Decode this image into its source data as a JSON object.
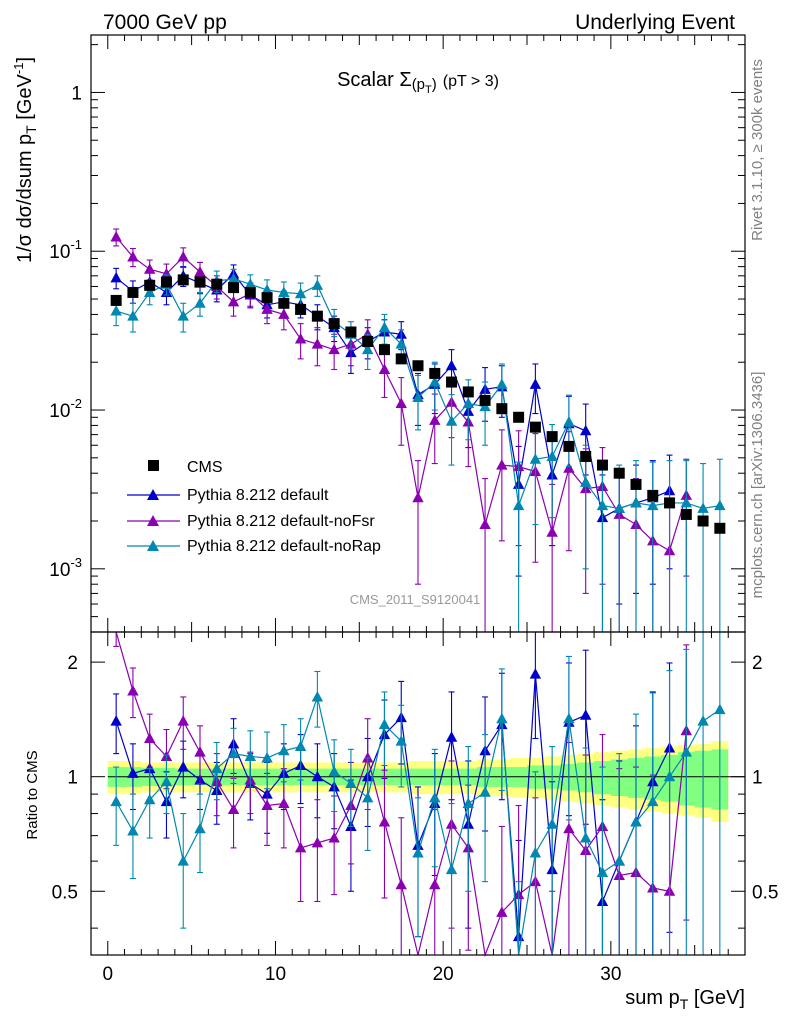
{
  "header": {
    "left": "7000 GeV pp",
    "right": "Underlying Event"
  },
  "side_labels": {
    "rivet": "Rivet 3.1.10, ≥ 300k events",
    "mcplots": "mcplots.cern.ch [arXiv:1306.3436]"
  },
  "chart_data": {
    "type": "scatter",
    "title": "Scalar Σ(pT) (pT > 3)",
    "title_parts": {
      "pre": "Scalar ",
      "sigma": "Σ",
      "arg_open": "(p",
      "arg_sub": "T",
      "arg_close": ")",
      "cut": "(pT >  3)"
    },
    "analysis_label": "CMS_2011_S9120041",
    "xlabel": "sum pT [GeV]",
    "xlabel_parts": {
      "main": "sum p",
      "sub": "T",
      "unit": " [GeV]"
    },
    "ylabel": "1/σ dσ/dsum pT [GeV-1]",
    "ylabel_parts": {
      "a": "1/σ dσ/dsum p",
      "sub": "T",
      "b": " [GeV",
      "sup": "-1",
      "c": "]"
    },
    "ratio_ylabel": "Ratio to CMS",
    "xlim": [
      -1,
      38
    ],
    "ylim": [
      0.0004,
      2.3
    ],
    "yscale": "log",
    "ratio_ylim": [
      0.34,
      2.4
    ],
    "ratio_yscale": "log",
    "x_ticks": [
      0,
      10,
      20,
      30
    ],
    "y_ticks": [
      {
        "v": 0.001,
        "base": "10",
        "exp": "-3"
      },
      {
        "v": 0.01,
        "base": "10",
        "exp": "-2"
      },
      {
        "v": 0.1,
        "base": "10",
        "exp": "-1"
      },
      {
        "v": 1,
        "base": "1",
        "exp": ""
      }
    ],
    "ratio_ticks": [
      {
        "v": 0.5,
        "label": "0.5"
      },
      {
        "v": 1,
        "label": "1"
      },
      {
        "v": 2,
        "label": "2"
      }
    ],
    "legend_position": "lower-left",
    "x": [
      0.5,
      1.5,
      2.5,
      3.5,
      4.5,
      5.5,
      6.5,
      7.5,
      8.5,
      9.5,
      10.5,
      11.5,
      12.5,
      13.5,
      14.5,
      15.5,
      16.5,
      17.5,
      18.5,
      19.5,
      20.5,
      21.5,
      22.5,
      23.5,
      24.5,
      25.5,
      26.5,
      27.5,
      28.5,
      29.5,
      30.5,
      31.5,
      32.5,
      33.5,
      34.5,
      35.5,
      36.5
    ],
    "reference": {
      "name": "CMS",
      "color": "#000000",
      "marker": "square",
      "values": [
        0.049,
        0.055,
        0.061,
        0.064,
        0.066,
        0.064,
        0.062,
        0.059,
        0.055,
        0.051,
        0.047,
        0.043,
        0.039,
        0.035,
        0.031,
        0.027,
        0.024,
        0.021,
        0.019,
        0.017,
        0.015,
        0.013,
        0.0115,
        0.0102,
        0.009,
        0.0078,
        0.0068,
        0.0059,
        0.0051,
        0.0045,
        0.004,
        0.0034,
        0.0029,
        0.0026,
        0.0022,
        0.002,
        0.0018
      ],
      "band_inner": [
        0.06,
        0.06,
        0.055,
        0.055,
        0.05,
        0.05,
        0.05,
        0.05,
        0.05,
        0.05,
        0.05,
        0.05,
        0.05,
        0.05,
        0.05,
        0.05,
        0.05,
        0.05,
        0.05,
        0.05,
        0.05,
        0.05,
        0.06,
        0.06,
        0.06,
        0.07,
        0.07,
        0.08,
        0.09,
        0.1,
        0.11,
        0.12,
        0.13,
        0.14,
        0.16,
        0.17,
        0.18
      ],
      "band_outer": [
        0.1,
        0.1,
        0.09,
        0.09,
        0.09,
        0.09,
        0.09,
        0.09,
        0.09,
        0.09,
        0.09,
        0.09,
        0.09,
        0.09,
        0.09,
        0.09,
        0.09,
        0.09,
        0.1,
        0.1,
        0.1,
        0.1,
        0.11,
        0.11,
        0.12,
        0.12,
        0.13,
        0.14,
        0.15,
        0.16,
        0.17,
        0.18,
        0.19,
        0.2,
        0.21,
        0.22,
        0.24
      ],
      "band_inner_color": "#80ff80",
      "band_outer_color": "#ffff80"
    },
    "series": [
      {
        "name": "Pythia 8.212 default",
        "color": "#0000cc",
        "marker": "triangle",
        "values": [
          0.068,
          0.056,
          0.064,
          0.055,
          0.07,
          0.063,
          0.057,
          0.072,
          0.053,
          0.046,
          0.048,
          0.046,
          0.039,
          0.033,
          0.023,
          0.027,
          0.031,
          0.03,
          0.0125,
          0.0145,
          0.019,
          0.0098,
          0.0135,
          0.014,
          0.0034,
          0.0145,
          0.0039,
          0.0082,
          0.0074,
          0.0021,
          0.0024,
          0.0026,
          0.0028,
          0.0031
        ],
        "errors": [
          0.01,
          0.009,
          0.009,
          0.009,
          0.01,
          0.009,
          0.009,
          0.01,
          0.009,
          0.008,
          0.008,
          0.008,
          0.007,
          0.006,
          0.006,
          0.006,
          0.006,
          0.006,
          0.0045,
          0.005,
          0.005,
          0.004,
          0.005,
          0.005,
          0.0025,
          0.005,
          0.0025,
          0.004,
          0.0035,
          0.0018,
          0.0018,
          0.0019,
          0.002,
          0.0021
        ],
        "ratio": [
          1.4,
          1.02,
          1.05,
          0.86,
          1.06,
          0.98,
          0.92,
          1.22,
          0.96,
          0.9,
          1.02,
          1.07,
          1.0,
          0.94,
          0.74,
          1.0,
          1.29,
          1.43,
          0.66,
          0.85,
          1.27,
          0.75,
          1.17,
          1.37,
          0.38,
          1.86,
          0.57,
          1.39,
          1.45,
          0.47,
          0.6,
          0.76,
          0.97,
          1.19
        ],
        "ratio_errors": [
          0.25,
          0.2,
          0.18,
          0.17,
          0.18,
          0.16,
          0.17,
          0.2,
          0.19,
          0.19,
          0.2,
          0.22,
          0.22,
          0.21,
          0.24,
          0.26,
          0.3,
          0.35,
          0.28,
          0.3,
          0.4,
          0.35,
          0.45,
          0.5,
          0.3,
          0.6,
          0.4,
          0.6,
          0.7,
          0.4,
          0.5,
          0.6,
          0.7,
          0.8
        ]
      },
      {
        "name": "Pythia 8.212 default-noFsr",
        "color": "#8b00b0",
        "marker": "triangle",
        "values": [
          0.123,
          0.092,
          0.077,
          0.072,
          0.092,
          0.074,
          0.06,
          0.048,
          0.054,
          0.043,
          0.04,
          0.028,
          0.026,
          0.024,
          0.026,
          0.03,
          0.018,
          0.011,
          0.0028,
          0.0086,
          0.0112,
          0.0084,
          0.0019,
          0.0045,
          0.0044,
          0.0041,
          0.0017,
          0.0043,
          0.0032,
          0.0033,
          0.0022,
          0.0019,
          0.0015,
          0.0013,
          0.0029
        ],
        "errors": [
          0.015,
          0.012,
          0.011,
          0.011,
          0.013,
          0.011,
          0.01,
          0.009,
          0.009,
          0.008,
          0.008,
          0.007,
          0.007,
          0.006,
          0.007,
          0.007,
          0.006,
          0.005,
          0.002,
          0.004,
          0.0045,
          0.004,
          0.0018,
          0.003,
          0.003,
          0.003,
          0.0017,
          0.003,
          0.0025,
          0.0025,
          0.002,
          0.0018,
          0.0015,
          0.0014,
          0.002
        ],
        "ratio": [
          2.5,
          1.68,
          1.26,
          1.13,
          1.4,
          1.16,
          0.97,
          0.82,
          0.98,
          0.84,
          0.85,
          0.65,
          0.67,
          0.69,
          0.84,
          1.12,
          0.76,
          0.52,
          0.15,
          0.52,
          0.75,
          0.65,
          0.16,
          0.44,
          0.49,
          0.53,
          0.25,
          0.73,
          0.64,
          0.74,
          0.55,
          0.56,
          0.51,
          0.5,
          1.32
        ],
        "ratio_errors": [
          0.3,
          0.25,
          0.2,
          0.2,
          0.22,
          0.2,
          0.18,
          0.17,
          0.18,
          0.18,
          0.2,
          0.18,
          0.2,
          0.2,
          0.25,
          0.3,
          0.28,
          0.26,
          0.15,
          0.3,
          0.35,
          0.3,
          0.15,
          0.3,
          0.35,
          0.35,
          0.25,
          0.5,
          0.5,
          0.55,
          0.5,
          0.5,
          0.5,
          0.5,
          0.9
        ]
      },
      {
        "name": "Pythia 8.212 default-noRap",
        "color": "#0088b0",
        "marker": "triangle",
        "values": [
          0.042,
          0.039,
          0.055,
          0.062,
          0.039,
          0.047,
          0.065,
          0.067,
          0.062,
          0.057,
          0.055,
          0.054,
          0.061,
          0.036,
          0.03,
          0.024,
          0.033,
          0.026,
          0.012,
          0.015,
          0.0085,
          0.011,
          0.0105,
          0.0145,
          0.0025,
          0.0049,
          0.0051,
          0.0084,
          0.0035,
          0.0025,
          0.0024,
          0.0026,
          0.0025,
          0.0026,
          0.0026,
          0.0024,
          0.0025
        ],
        "errors": [
          0.008,
          0.008,
          0.009,
          0.009,
          0.008,
          0.008,
          0.01,
          0.01,
          0.009,
          0.009,
          0.009,
          0.009,
          0.009,
          0.007,
          0.006,
          0.006,
          0.007,
          0.006,
          0.0045,
          0.005,
          0.004,
          0.0045,
          0.0045,
          0.005,
          0.0022,
          0.003,
          0.003,
          0.004,
          0.0025,
          0.0022,
          0.0021,
          0.0022,
          0.0022,
          0.0022,
          0.0022,
          0.0022,
          0.0024
        ],
        "ratio": [
          0.86,
          0.72,
          0.87,
          0.97,
          0.6,
          0.73,
          1.05,
          1.15,
          1.13,
          1.12,
          1.17,
          1.2,
          1.62,
          1.03,
          0.96,
          0.88,
          1.37,
          1.24,
          0.63,
          0.88,
          0.57,
          0.85,
          0.91,
          1.42,
          0.28,
          0.63,
          0.75,
          1.42,
          0.69,
          0.56,
          0.6,
          0.76,
          0.86,
          1.0,
          1.16,
          1.4,
          1.5
        ],
        "ratio_errors": [
          0.2,
          0.18,
          0.18,
          0.17,
          0.2,
          0.17,
          0.18,
          0.19,
          0.19,
          0.19,
          0.2,
          0.22,
          0.27,
          0.22,
          0.22,
          0.24,
          0.3,
          0.3,
          0.25,
          0.3,
          0.28,
          0.35,
          0.38,
          0.5,
          0.25,
          0.4,
          0.45,
          0.65,
          0.5,
          0.5,
          0.55,
          0.7,
          0.8,
          0.9,
          1.0,
          1.1,
          1.2
        ]
      }
    ]
  }
}
